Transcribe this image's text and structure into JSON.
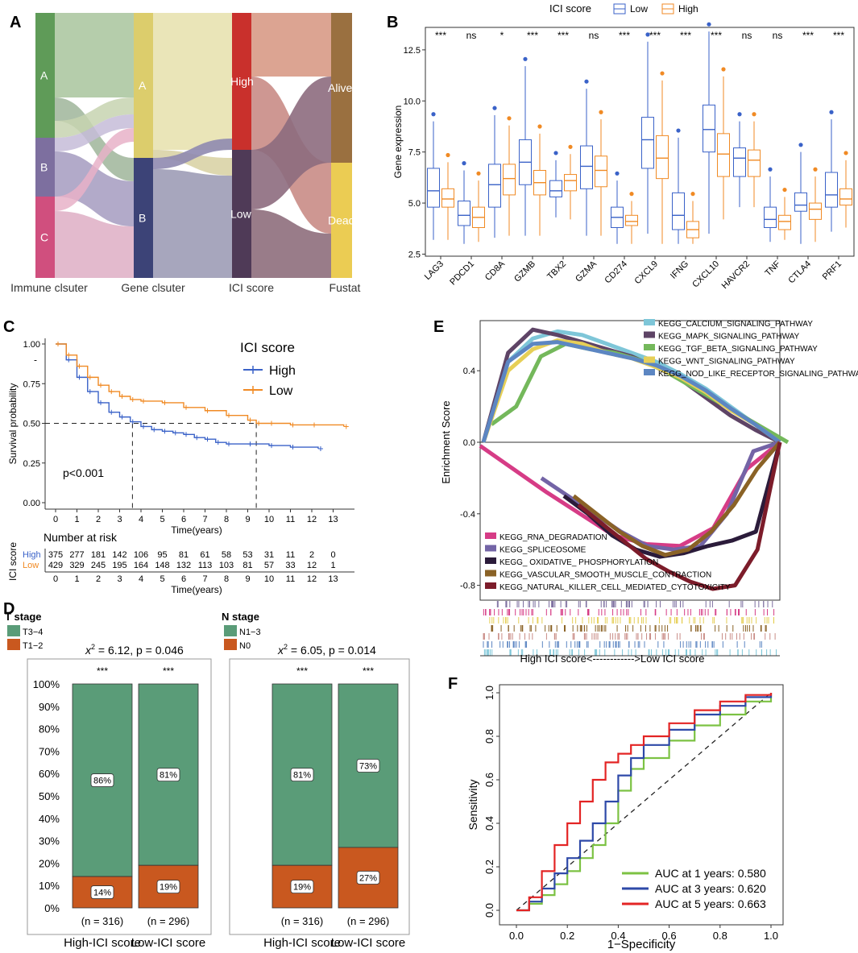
{
  "panel_labels": {
    "a": "A",
    "b": "B",
    "c": "C",
    "d": "D",
    "e": "E",
    "f": "F"
  },
  "colors": {
    "low_blue": "#3a62c8",
    "high_orange": "#f08a24",
    "green_bar": "#5a9c78",
    "orange_bar": "#c9581f",
    "roc1": "#7cc243",
    "roc3": "#2e49a8",
    "roc5": "#e32424"
  },
  "chart_data": [
    {
      "id": "A",
      "type": "sankey",
      "axes": [
        "Immune clsuter",
        "Gene clsuter",
        "ICI score",
        "Fustat"
      ],
      "nodes": [
        {
          "axis": 0,
          "label": "A",
          "color": "#5f9b58"
        },
        {
          "axis": 0,
          "label": "B",
          "color": "#7d6f9f"
        },
        {
          "axis": 0,
          "label": "C",
          "color": "#d04f7e"
        },
        {
          "axis": 1,
          "label": "A",
          "color": "#dccd6c"
        },
        {
          "axis": 1,
          "label": "B",
          "color": "#3c4377"
        },
        {
          "axis": 2,
          "label": "High",
          "color": "#c9302c"
        },
        {
          "axis": 2,
          "label": "Low",
          "color": "#4f3a57"
        },
        {
          "axis": 3,
          "label": "Alive",
          "color": "#9a7040"
        },
        {
          "axis": 3,
          "label": "Dead",
          "color": "#ebcc53"
        }
      ]
    },
    {
      "id": "B",
      "type": "boxplot",
      "legend_title": "ICI score",
      "series": [
        {
          "name": "Low"
        },
        {
          "name": "High"
        }
      ],
      "categories": [
        "LAG3",
        "PDCD1",
        "CD8A",
        "GZMB",
        "TBX2",
        "GZMA",
        "CD274",
        "CXCL9",
        "IFNG",
        "CXCL10",
        "HAVCR2",
        "TNF",
        "CTLA4",
        "PRF1"
      ],
      "significance": [
        "***",
        "ns",
        "*",
        "***",
        "***",
        "ns",
        "***",
        "***",
        "***",
        "***",
        "ns",
        "ns",
        "***",
        "***"
      ],
      "ylabel": "Gene expression",
      "yticks": [
        "2.5",
        "5.0",
        "7.5",
        "10.0",
        "12.5"
      ],
      "ylim": [
        2.4,
        13.6
      ],
      "boxes_low": [
        [
          3.2,
          4.8,
          5.6,
          6.7,
          9.0
        ],
        [
          3.0,
          3.9,
          4.4,
          5.1,
          6.6
        ],
        [
          3.3,
          4.8,
          5.9,
          6.9,
          9.3
        ],
        [
          3.4,
          5.9,
          7.0,
          8.1,
          11.7
        ],
        [
          4.3,
          5.3,
          5.6,
          6.1,
          7.1
        ],
        [
          3.4,
          5.7,
          6.8,
          7.8,
          10.6
        ],
        [
          3.0,
          3.8,
          4.3,
          4.8,
          6.1
        ],
        [
          3.5,
          6.7,
          8.1,
          9.2,
          12.9
        ],
        [
          3.0,
          3.7,
          4.4,
          5.5,
          8.2
        ],
        [
          3.5,
          7.5,
          8.6,
          9.8,
          13.4
        ],
        [
          4.8,
          6.3,
          7.2,
          7.7,
          9.0
        ],
        [
          3.1,
          3.8,
          4.2,
          4.8,
          6.3
        ],
        [
          3.0,
          4.6,
          4.9,
          5.5,
          7.5
        ],
        [
          3.6,
          4.8,
          5.4,
          6.5,
          9.1
        ]
      ],
      "boxes_high": [
        [
          3.2,
          4.8,
          5.2,
          5.7,
          7.0
        ],
        [
          3.1,
          3.8,
          4.3,
          4.8,
          6.1
        ],
        [
          3.4,
          5.4,
          6.2,
          6.9,
          8.8
        ],
        [
          3.4,
          5.4,
          6.0,
          6.6,
          8.4
        ],
        [
          4.2,
          5.6,
          6.1,
          6.4,
          7.4
        ],
        [
          3.4,
          5.8,
          6.6,
          7.3,
          9.1
        ],
        [
          3.0,
          3.9,
          4.1,
          4.4,
          5.1
        ],
        [
          3.0,
          6.2,
          7.2,
          8.3,
          11.0
        ],
        [
          3.0,
          3.3,
          3.7,
          4.1,
          5.1
        ],
        [
          4.2,
          6.3,
          7.4,
          8.4,
          11.2
        ],
        [
          4.8,
          6.3,
          7.1,
          7.6,
          9.0
        ],
        [
          3.2,
          3.7,
          4.1,
          4.4,
          5.3
        ],
        [
          3.1,
          4.2,
          4.7,
          5.0,
          6.3
        ],
        [
          3.8,
          4.9,
          5.2,
          5.7,
          7.1
        ]
      ]
    },
    {
      "id": "C",
      "type": "survival",
      "legend_title": "ICI score",
      "series": [
        {
          "name": "High",
          "x": [
            0,
            0.5,
            1,
            1.5,
            2,
            2.5,
            3,
            3.5,
            4,
            4.5,
            5,
            5.5,
            6,
            6.5,
            7,
            7.5,
            8,
            9,
            10,
            11,
            12.3
          ],
          "y": [
            1.0,
            0.9,
            0.79,
            0.7,
            0.63,
            0.57,
            0.54,
            0.51,
            0.48,
            0.46,
            0.45,
            0.44,
            0.43,
            0.41,
            0.4,
            0.38,
            0.37,
            0.37,
            0.36,
            0.35,
            0.34
          ]
        },
        {
          "name": "Low",
          "x": [
            0,
            0.5,
            1,
            1.5,
            2,
            2.5,
            3,
            3.5,
            4,
            5,
            6,
            7,
            8,
            9,
            9.4,
            10,
            11,
            12,
            13.5
          ],
          "y": [
            1.0,
            0.93,
            0.86,
            0.79,
            0.74,
            0.7,
            0.67,
            0.65,
            0.64,
            0.63,
            0.6,
            0.58,
            0.55,
            0.52,
            0.5,
            0.5,
            0.49,
            0.49,
            0.48
          ]
        }
      ],
      "xlabel": "Time(years)",
      "ylabel": "Survival probability",
      "xticks": [
        "0",
        "1",
        "2",
        "3",
        "4",
        "5",
        "6",
        "7",
        "8",
        "9",
        "10",
        "11",
        "12",
        "13"
      ],
      "yticks": [
        "0.00",
        "0.25",
        "0.50",
        "0.75",
        "1.00"
      ],
      "median_high": 3.6,
      "median_low": 9.4,
      "pvalue": "p<0.001",
      "risk_title": "Number at risk",
      "risk_ylabel": "ICI score",
      "risk_high": [
        "375",
        "277",
        "181",
        "142",
        "106",
        "95",
        "81",
        "61",
        "58",
        "53",
        "31",
        "11",
        "2",
        "0"
      ],
      "risk_low": [
        "429",
        "329",
        "245",
        "195",
        "164",
        "148",
        "132",
        "113",
        "103",
        "81",
        "57",
        "33",
        "12",
        "1"
      ],
      "risk_xlabel": "Time(years)",
      "dash_mark": "-"
    },
    {
      "id": "D1",
      "type": "stacked_bar",
      "legend_title": "T stage",
      "legend_items": [
        "T3−4",
        "T1−2"
      ],
      "stat_prefix": "x",
      "stat_sup": "2",
      "stat_rest": " = 6.12, p = 0.046",
      "categories": [
        "High-ICI score",
        "Low-ICI score"
      ],
      "top_pct": [
        86,
        81
      ],
      "bottom_pct": [
        14,
        19
      ],
      "top_labels": [
        "86%",
        "81%"
      ],
      "bottom_labels": [
        "14%",
        "19%"
      ],
      "stars": [
        "***",
        "***"
      ],
      "n_labels": [
        "(n = 316)",
        "(n = 296)"
      ],
      "yticks": [
        "0%",
        "10%",
        "20%",
        "30%",
        "40%",
        "50%",
        "60%",
        "70%",
        "80%",
        "90%",
        "100%"
      ]
    },
    {
      "id": "D2",
      "type": "stacked_bar",
      "legend_title": "N stage",
      "legend_items": [
        "N1−3",
        "N0"
      ],
      "stat_prefix": "x",
      "stat_sup": "2",
      "stat_rest": " = 6.05, p = 0.014",
      "categories": [
        "High-ICI score",
        "Low-ICI score"
      ],
      "top_pct": [
        81,
        73
      ],
      "bottom_pct": [
        19,
        27
      ],
      "top_labels": [
        "81%",
        "73%"
      ],
      "bottom_labels": [
        "19%",
        "27%"
      ],
      "stars": [
        "***",
        "***"
      ],
      "n_labels": [
        "(n = 316)",
        "(n = 296)"
      ]
    },
    {
      "id": "E",
      "type": "gsea",
      "ylabel": "Enrichment Score",
      "yticks": [
        "0.4",
        "0.0",
        "-0.4",
        "-0.8"
      ],
      "xlabel": "High ICI score<------------>Low ICI score",
      "pos_series": [
        {
          "name": "KEGG_CALCIUM_SIGNALING_PATHWAY",
          "color": "#7ec6d8",
          "y": [
            0.0,
            0.45,
            0.58,
            0.62,
            0.6,
            0.55,
            0.5,
            0.45,
            0.38,
            0.3,
            0.2,
            0.1,
            0.0
          ]
        },
        {
          "name": "KEGG_MAPK_SIGNALING_PATHWAY",
          "color": "#5e4466",
          "y": [
            0.0,
            0.5,
            0.63,
            0.6,
            0.56,
            0.52,
            0.48,
            0.42,
            0.35,
            0.25,
            0.15,
            0.07,
            0.0
          ]
        },
        {
          "name": "KEGG_TGF_BETA_SIGNALING_PATHWAY",
          "color": "#74b85b",
          "y": [
            0.1,
            0.2,
            0.48,
            0.55,
            0.52,
            0.5,
            0.46,
            0.4,
            0.32,
            0.24,
            0.16,
            0.08,
            0.0
          ]
        },
        {
          "name": "KEGG_WNT_SIGNALING_PATHWAY",
          "color": "#e6cf57",
          "y": [
            0.0,
            0.4,
            0.52,
            0.57,
            0.55,
            0.5,
            0.47,
            0.42,
            0.36,
            0.28,
            0.18,
            0.1,
            0.0
          ]
        },
        {
          "name": "KEGG_NOD_LIKE_RECEPTOR_SIGNALING_PATHWAY",
          "color": "#5c86c2",
          "y": [
            0.0,
            0.45,
            0.55,
            0.56,
            0.53,
            0.5,
            0.47,
            0.43,
            0.37,
            0.29,
            0.19,
            0.1,
            0.0
          ]
        }
      ],
      "neg_series": [
        {
          "name": "KEGG_RNA_DEGRADATION",
          "color": "#d63c86",
          "y": [
            -0.02,
            -0.15,
            -0.28,
            -0.4,
            -0.52,
            -0.57,
            -0.58,
            -0.48,
            -0.15,
            0.0
          ]
        },
        {
          "name": "KEGG_SPLICEOSOME",
          "color": "#7364a6",
          "y": [
            -0.2,
            -0.3,
            -0.4,
            -0.5,
            -0.58,
            -0.6,
            -0.58,
            -0.4,
            -0.05,
            0.0
          ]
        },
        {
          "name": "KEGG_ OXIDATIVE_ PHOSPHORYLATION",
          "color": "#2b1b3a",
          "y": [
            -0.3,
            -0.4,
            -0.52,
            -0.6,
            -0.64,
            -0.62,
            -0.58,
            -0.55,
            -0.5,
            0.0
          ]
        },
        {
          "name": "KEGG_VASCULAR_SMOOTH_MUSCLE_CONTRACTION",
          "color": "#8a6226",
          "y": [
            -0.3,
            -0.4,
            -0.5,
            -0.58,
            -0.63,
            -0.6,
            -0.5,
            -0.35,
            -0.15,
            0.0
          ]
        },
        {
          "name": "KEGG_NATURAL_KILLER_CELL_MEDIATED_CYTOTOXICITY",
          "color": "#7c1c2a",
          "y": [
            -0.35,
            -0.45,
            -0.55,
            -0.65,
            -0.72,
            -0.78,
            -0.82,
            -0.8,
            -0.6,
            0.0
          ]
        }
      ]
    },
    {
      "id": "F",
      "type": "roc",
      "xlabel": "1−Specificity",
      "ylabel": "Sensitivity",
      "xticks": [
        "0.0",
        "0.2",
        "0.4",
        "0.6",
        "0.8",
        "1.0"
      ],
      "yticks": [
        "0.0",
        "0.2",
        "0.4",
        "0.6",
        "0.8",
        "1.0"
      ],
      "series": [
        {
          "name": "AUC at 1 years: 0.580",
          "color": "#7cc243",
          "x": [
            0,
            0.05,
            0.1,
            0.15,
            0.2,
            0.25,
            0.3,
            0.35,
            0.4,
            0.45,
            0.5,
            0.6,
            0.7,
            0.8,
            0.9,
            1
          ],
          "y": [
            0,
            0.03,
            0.07,
            0.12,
            0.18,
            0.24,
            0.3,
            0.4,
            0.55,
            0.65,
            0.7,
            0.78,
            0.85,
            0.9,
            0.96,
            1
          ]
        },
        {
          "name": "AUC at 3 years: 0.620",
          "color": "#2e49a8",
          "x": [
            0,
            0.05,
            0.1,
            0.15,
            0.2,
            0.25,
            0.3,
            0.35,
            0.4,
            0.45,
            0.5,
            0.6,
            0.7,
            0.8,
            0.9,
            1
          ],
          "y": [
            0,
            0.04,
            0.1,
            0.17,
            0.24,
            0.32,
            0.4,
            0.5,
            0.62,
            0.7,
            0.76,
            0.83,
            0.9,
            0.94,
            0.98,
            1
          ]
        },
        {
          "name": "AUC at 5 years: 0.663",
          "color": "#e32424",
          "x": [
            0,
            0.05,
            0.1,
            0.15,
            0.2,
            0.25,
            0.3,
            0.35,
            0.4,
            0.45,
            0.5,
            0.6,
            0.7,
            0.8,
            0.9,
            1
          ],
          "y": [
            0,
            0.06,
            0.18,
            0.3,
            0.4,
            0.5,
            0.6,
            0.68,
            0.72,
            0.76,
            0.8,
            0.86,
            0.92,
            0.96,
            0.99,
            1
          ]
        }
      ]
    }
  ]
}
